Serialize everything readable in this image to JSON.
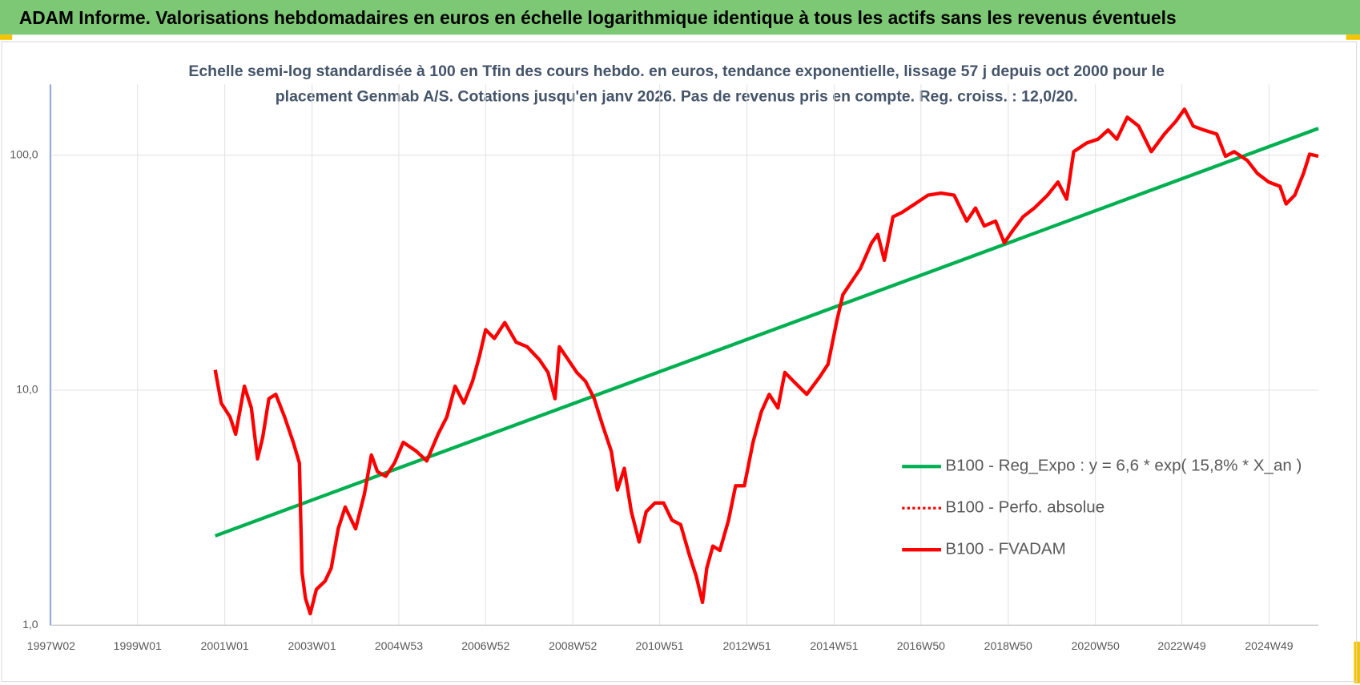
{
  "header": "ADAM Informe. Valorisations hebdomadaires en euros en échelle logarithmique identique à tous les actifs sans les revenus éventuels",
  "chart_data": {
    "type": "line",
    "title": [
      "Echelle semi-log standardisée à 100 en Tfin des cours hebdo. en euros, tendance exponentielle, lissage 57 j depuis oct 2000 pour le",
      "placement Genmab A/S. Cotations jusqu'en janv 2026. Pas de revenus pris en compte. Reg. croiss. : 12,0/20."
    ],
    "log_scale": true,
    "grid": true,
    "legend": "right",
    "xlim": [
      1997.0,
      2026.07
    ],
    "xticks": [
      {
        "value": 1997.02,
        "label": "1997W02"
      },
      {
        "value": 1999.0,
        "label": "1999W01"
      },
      {
        "value": 2001.0,
        "label": "2001W01"
      },
      {
        "value": 2003.0,
        "label": "2003W01"
      },
      {
        "value": 2004.99,
        "label": "2004W53"
      },
      {
        "value": 2006.98,
        "label": "2006W52"
      },
      {
        "value": 2008.98,
        "label": "2008W52"
      },
      {
        "value": 2010.97,
        "label": "2010W51"
      },
      {
        "value": 2012.97,
        "label": "2012W51"
      },
      {
        "value": 2014.97,
        "label": "2014W51"
      },
      {
        "value": 2016.96,
        "label": "2016W50"
      },
      {
        "value": 2018.96,
        "label": "2018W50"
      },
      {
        "value": 2020.96,
        "label": "2020W50"
      },
      {
        "value": 2022.94,
        "label": "2022W49"
      },
      {
        "value": 2024.94,
        "label": "2024W49"
      }
    ],
    "ylim": [
      1,
      200
    ],
    "yticks": [
      {
        "value": 1,
        "label": "1,0"
      },
      {
        "value": 10,
        "label": "10,0"
      },
      {
        "value": 100,
        "label": "100,0"
      }
    ],
    "series": [
      {
        "name": "B100 - Reg_Expo : y = 6,6 * exp( 15,8% *  X_an )",
        "color": "#00b050",
        "x": [
          2000.78,
          2026.07
        ],
        "values": [
          2.4,
          130
        ]
      },
      {
        "name": "B100 - Perfo. absolue",
        "color": "#ff0000",
        "dash": "dotted"
      },
      {
        "name": "B100 - FVADAM",
        "color": "#ff0000",
        "x": [
          2000.78,
          2000.92,
          2001.12,
          2001.25,
          2001.45,
          2001.61,
          2001.75,
          2001.87,
          2002.01,
          2002.17,
          2002.37,
          2002.57,
          2002.71,
          2002.77,
          2002.85,
          2002.96,
          2003.1,
          2003.3,
          2003.44,
          2003.6,
          2003.76,
          2004.0,
          2004.2,
          2004.36,
          2004.5,
          2004.69,
          2004.89,
          2005.09,
          2005.39,
          2005.63,
          2005.89,
          2006.09,
          2006.28,
          2006.48,
          2006.68,
          2006.84,
          2006.98,
          2007.18,
          2007.42,
          2007.68,
          2007.93,
          2008.21,
          2008.41,
          2008.57,
          2008.67,
          2008.87,
          2009.07,
          2009.27,
          2009.47,
          2009.66,
          2009.86,
          2010.0,
          2010.16,
          2010.32,
          2010.5,
          2010.66,
          2010.86,
          2011.06,
          2011.25,
          2011.45,
          2011.65,
          2011.81,
          2011.95,
          2012.05,
          2012.19,
          2012.35,
          2012.55,
          2012.71,
          2012.91,
          2013.11,
          2013.3,
          2013.48,
          2013.68,
          2013.84,
          2014.04,
          2014.34,
          2014.64,
          2014.83,
          2015.03,
          2015.17,
          2015.37,
          2015.57,
          2015.83,
          2015.97,
          2016.12,
          2016.32,
          2016.52,
          2016.82,
          2017.12,
          2017.42,
          2017.72,
          2018.01,
          2018.21,
          2018.41,
          2018.67,
          2018.87,
          2019.07,
          2019.3,
          2019.56,
          2019.86,
          2020.1,
          2020.3,
          2020.46,
          2020.76,
          2021.02,
          2021.25,
          2021.45,
          2021.69,
          2021.95,
          2022.24,
          2022.54,
          2022.8,
          2023.0,
          2023.2,
          2023.44,
          2023.74,
          2023.94,
          2024.14,
          2024.44,
          2024.67,
          2024.93,
          2025.19,
          2025.33,
          2025.53,
          2025.73,
          2025.87,
          2026.07
        ],
        "values": [
          12.2,
          8.8,
          7.7,
          6.5,
          10.4,
          8.4,
          5.1,
          6.3,
          9.2,
          9.6,
          7.7,
          6.0,
          4.9,
          1.68,
          1.3,
          1.12,
          1.42,
          1.54,
          1.75,
          2.57,
          3.18,
          2.57,
          3.61,
          5.3,
          4.5,
          4.3,
          4.9,
          6.0,
          5.5,
          5.0,
          6.5,
          7.7,
          10.4,
          8.8,
          10.9,
          14.0,
          18.1,
          16.6,
          19.4,
          16.0,
          15.3,
          13.5,
          11.9,
          9.2,
          15.3,
          13.5,
          11.9,
          10.9,
          9.2,
          7.1,
          5.5,
          3.76,
          4.65,
          3.04,
          2.26,
          3.04,
          3.31,
          3.31,
          2.8,
          2.68,
          1.99,
          1.61,
          1.25,
          1.75,
          2.17,
          2.08,
          2.8,
          3.92,
          3.92,
          6.0,
          8.1,
          9.6,
          8.4,
          11.9,
          10.9,
          9.6,
          11.4,
          12.9,
          19.7,
          25.5,
          29.0,
          32.9,
          42.4,
          46,
          35.7,
          54.7,
          57,
          62,
          67.6,
          69,
          67.6,
          52.4,
          59.6,
          50.0,
          52.4,
          42.4,
          48.0,
          54.7,
          59.6,
          67.6,
          76.9,
          65,
          103.5,
          112.7,
          117,
          128,
          117,
          145,
          133,
          103.5,
          123,
          139,
          157,
          133,
          128,
          123,
          99.0,
          103.5,
          95,
          83.7,
          76.9,
          73.7,
          62,
          67.6,
          83.7,
          101,
          99.0
        ]
      }
    ]
  }
}
